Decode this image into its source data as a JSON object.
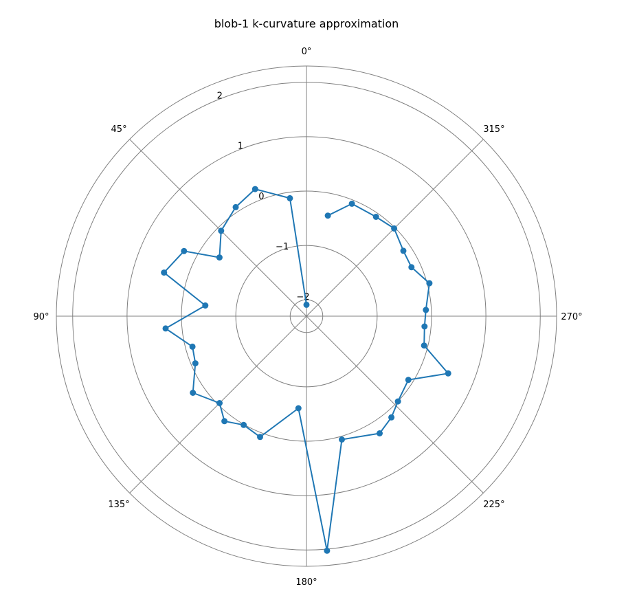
{
  "chart_data": {
    "type": "line",
    "projection": "polar",
    "title": "blob-1 k-curvature approximation",
    "theta_direction": "counterclockwise",
    "theta_zero_location": "top",
    "theta_ticks": [
      "0°",
      "45°",
      "90°",
      "135°",
      "180°",
      "225°",
      "270°",
      "315°"
    ],
    "r_ticks": [
      "−2",
      "−1",
      "0",
      "1",
      "2"
    ],
    "r_tick_values": [
      -2,
      -1,
      0,
      1,
      2
    ],
    "rlim": [
      -2.3,
      2.3
    ],
    "grid": true,
    "series": [
      {
        "color": "#1f77b4",
        "marker": "circle",
        "points": [
          {
            "theta": 0,
            "r": -2.09
          },
          {
            "theta": 8,
            "r": -0.11
          },
          {
            "theta": 22,
            "r": 0.22
          },
          {
            "theta": 33,
            "r": 0.09
          },
          {
            "theta": 45,
            "r": -0.08
          },
          {
            "theta": 56,
            "r": -0.37
          },
          {
            "theta": 62,
            "r": 0.25
          },
          {
            "theta": 73,
            "r": 0.44
          },
          {
            "theta": 84,
            "r": -0.43
          },
          {
            "theta": 95,
            "r": 0.3
          },
          {
            "theta": 105,
            "r": -0.13
          },
          {
            "theta": 113,
            "r": -0.08
          },
          {
            "theta": 124,
            "r": 0.22
          },
          {
            "theta": 135,
            "r": -0.04
          },
          {
            "theta": 142,
            "r": 0.15
          },
          {
            "theta": 150,
            "r": 0.01
          },
          {
            "theta": 159,
            "r": 0.08
          },
          {
            "theta": 175,
            "r": -0.6
          },
          {
            "theta": 185,
            "r": 2.03
          },
          {
            "theta": 196,
            "r": 0.06
          },
          {
            "theta": 212,
            "r": 0.24
          },
          {
            "theta": 220,
            "r": 0.13
          },
          {
            "theta": 227,
            "r": 0.0
          },
          {
            "theta": 238,
            "r": -0.09
          },
          {
            "theta": 248,
            "r": 0.51
          },
          {
            "theta": 256,
            "r": -0.07
          },
          {
            "theta": 265,
            "r": -0.12
          },
          {
            "theta": 273,
            "r": -0.1
          },
          {
            "theta": 285,
            "r": 0.04
          },
          {
            "theta": 295,
            "r": -0.17
          },
          {
            "theta": 304,
            "r": -0.15
          },
          {
            "theta": 315,
            "r": -0.02
          },
          {
            "theta": 325,
            "r": -0.07
          },
          {
            "theta": 338,
            "r": -0.07
          },
          {
            "theta": 348,
            "r": -0.41
          }
        ]
      }
    ]
  }
}
